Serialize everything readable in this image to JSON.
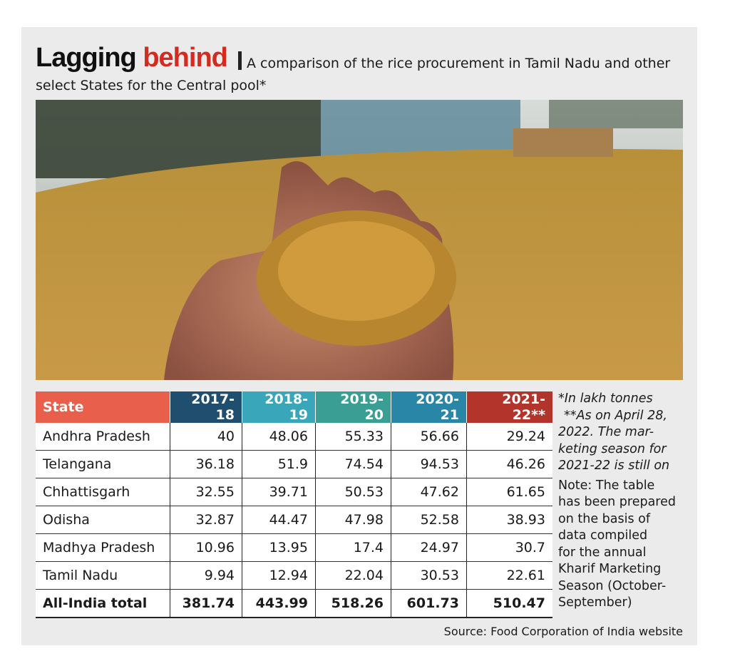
{
  "header": {
    "title_main": "Lagging",
    "title_accent": "behind",
    "subtitle_lines": [
      "A comparison of the rice procurement in Tamil Nadu and other",
      "select States for the Central pool*"
    ]
  },
  "table": {
    "columns": [
      "State",
      "2017-18",
      "2018-19",
      "2019-20",
      "2020-21",
      "2021-22**"
    ],
    "rows": [
      [
        "Andhra Pradesh",
        40,
        48.06,
        55.33,
        56.66,
        29.24
      ],
      [
        "Telangana",
        36.18,
        51.9,
        74.54,
        94.53,
        46.26
      ],
      [
        "Chhattisgarh",
        32.55,
        39.71,
        50.53,
        47.62,
        61.65
      ],
      [
        "Odisha",
        32.87,
        44.47,
        47.98,
        52.58,
        38.93
      ],
      [
        "Madhya Pradesh",
        10.96,
        13.95,
        17.4,
        24.97,
        30.7
      ],
      [
        "Tamil Nadu",
        9.94,
        12.94,
        22.04,
        30.53,
        22.61
      ]
    ],
    "total_row": [
      "All-India total",
      381.74,
      443.99,
      518.26,
      601.73,
      510.47
    ]
  },
  "notes": {
    "units": "*In lakh tonnes",
    "as_on_lines": [
      "**As on April 28,",
      "2022. The mar-",
      "keting season for",
      "2021-22 is still on"
    ],
    "note_lines": [
      "Note: The table",
      "has been prepared",
      "on the basis of",
      "data compiled",
      "for the annual",
      "Kharif Marketing",
      "Season (October-",
      "September)"
    ]
  },
  "source": "Source: Food Corporation of India website"
}
